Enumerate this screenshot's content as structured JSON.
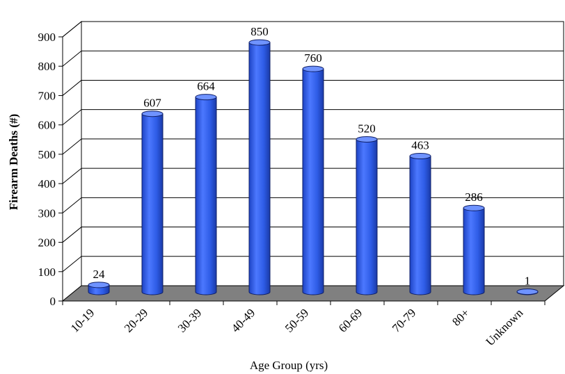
{
  "chart_data": {
    "type": "bar",
    "categories": [
      "10-19",
      "20-29",
      "30-39",
      "40-49",
      "50-59",
      "60-69",
      "70-79",
      "80+",
      "Unknown"
    ],
    "values": [
      24,
      607,
      664,
      850,
      760,
      520,
      463,
      286,
      1
    ],
    "data_labels": [
      "24",
      "607",
      "664",
      "850",
      "760",
      "520",
      "463",
      "286",
      "1"
    ],
    "xlabel": "Age Group (yrs)",
    "ylabel": "Firearm Deaths (#)",
    "ylim": [
      0,
      900
    ],
    "yticks": [
      "0",
      "100",
      "200",
      "300",
      "400",
      "500",
      "600",
      "700",
      "800",
      "900"
    ],
    "grid": true,
    "style": "3d-cylinder",
    "colors": {
      "bar": "#2e5ce6",
      "bar_light": "#6f93ff",
      "bar_dark": "#1a3aa8",
      "floor": "#808080",
      "grid": "#000000"
    }
  }
}
